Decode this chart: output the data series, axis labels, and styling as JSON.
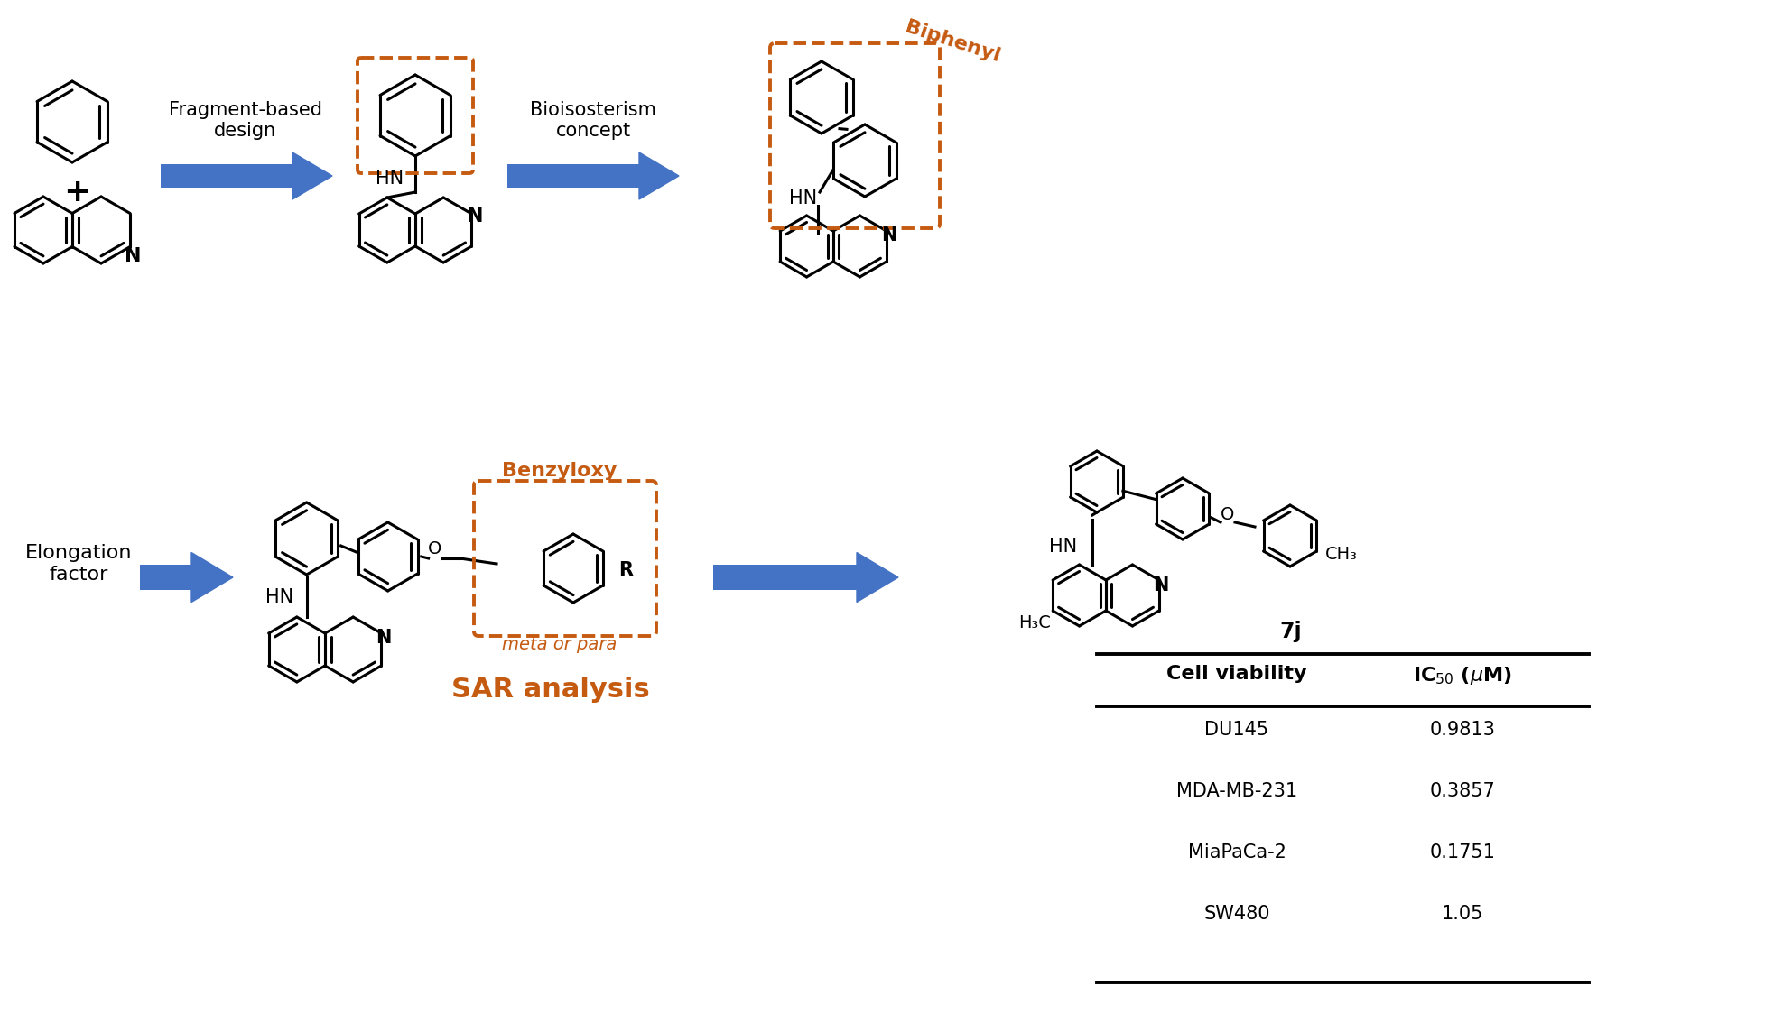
{
  "bg_color": "#ffffff",
  "arrow_color": "#4472c4",
  "orange_color": "#c55a11",
  "black_color": "#000000",
  "top_row": {
    "label1": "Fragment-based\ndesign",
    "label2": "Bioisosterism\nconcept",
    "biphenyl_label": "Biphenyl"
  },
  "bottom_row": {
    "left_label": "Elongation\nfactor",
    "benzyloxy_label": "Benzyloxy",
    "meta_para_label": "meta or para",
    "sar_label": "SAR analysis"
  },
  "compound_label": "7j",
  "table_headers": [
    "Cell viability",
    "IC₅₀ (μM)"
  ],
  "table_data": [
    [
      "DU145",
      "0.9813"
    ],
    [
      "MDA-MB-231",
      "0.3857"
    ],
    [
      "MiaPaCa-2",
      "0.1751"
    ],
    [
      "SW480",
      "1.05"
    ]
  ],
  "figsize": [
    19.85,
    11.44
  ],
  "dpi": 100
}
